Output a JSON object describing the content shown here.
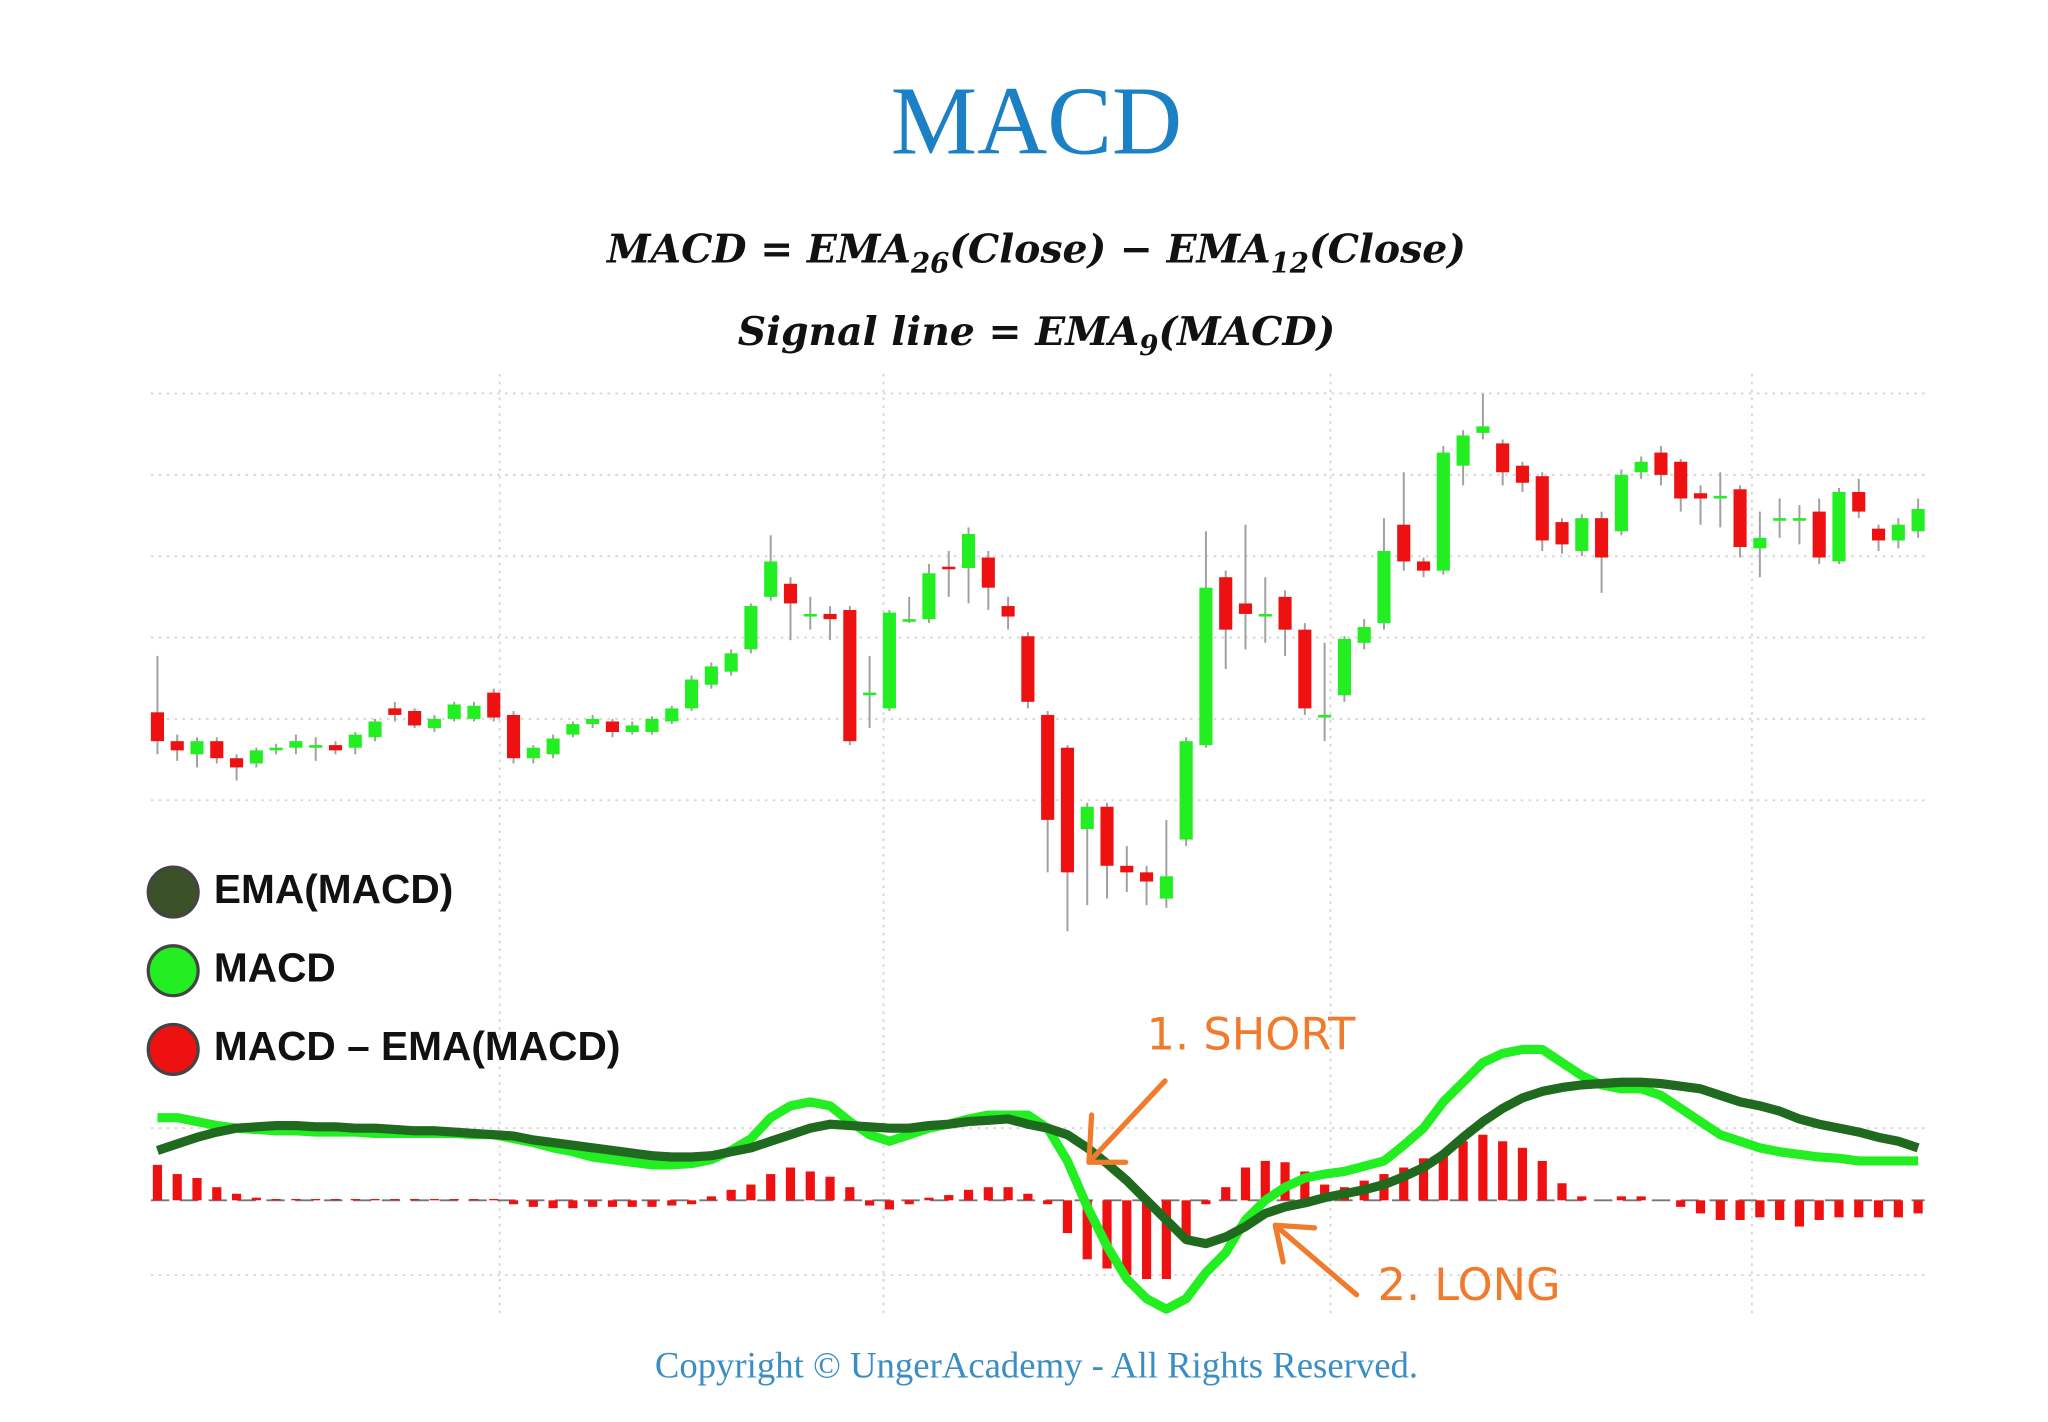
{
  "title": "MACD",
  "formulas": [
    [
      "MACD = EMA",
      "26",
      "(Close) − EMA",
      "12",
      "(Close)"
    ],
    [
      "Signal line = EMA",
      "9",
      "(MACD)"
    ]
  ],
  "copyright": "Copyright © UngerAcademy - All Rights Reserved.",
  "chart_data": [
    {
      "type": "candlestick",
      "up_color": "#22ee22",
      "down_color": "#ee1111",
      "wick_color": "#a0a0a0",
      "ylim": [
        0,
        420
      ],
      "yticks": [
        110,
        172,
        234,
        296,
        358,
        420
      ],
      "xlim": [
        0,
        89
      ],
      "xticks": [
        17.3,
        36.7,
        59.3,
        80.6
      ],
      "grid": true,
      "open": [
        177,
        155,
        145,
        155,
        142,
        138,
        148,
        150,
        150,
        152,
        150,
        158,
        180,
        178,
        165,
        172,
        172,
        192,
        175,
        142,
        145,
        160,
        168,
        170,
        162,
        162,
        170,
        180,
        198,
        208,
        225,
        265,
        275,
        250,
        252,
        255,
        190,
        180,
        247,
        248,
        288,
        287,
        295,
        258,
        235,
        175,
        150,
        88,
        105,
        60,
        55,
        35,
        80,
        152,
        280,
        260,
        252,
        265,
        240,
        175,
        190,
        230,
        245,
        320,
        292,
        285,
        365,
        390,
        382,
        365,
        357,
        322,
        300,
        325,
        315,
        360,
        375,
        368,
        344,
        340,
        347,
        302,
        325,
        325,
        330,
        292,
        345,
        317,
        308,
        315
      ],
      "high": [
        220,
        160,
        158,
        158,
        145,
        150,
        153,
        160,
        158,
        155,
        162,
        172,
        185,
        180,
        175,
        185,
        185,
        195,
        178,
        152,
        160,
        170,
        175,
        172,
        170,
        174,
        182,
        205,
        215,
        225,
        260,
        312,
        280,
        265,
        258,
        258,
        220,
        255,
        265,
        290,
        300,
        318,
        300,
        265,
        238,
        178,
        152,
        108,
        108,
        75,
        60,
        95,
        158,
        315,
        285,
        320,
        280,
        270,
        245,
        230,
        235,
        248,
        325,
        360,
        295,
        380,
        392,
        420,
        385,
        368,
        360,
        325,
        328,
        330,
        362,
        372,
        380,
        370,
        350,
        360,
        350,
        330,
        340,
        335,
        340,
        348,
        355,
        320,
        325,
        340
      ],
      "low": [
        145,
        140,
        135,
        138,
        125,
        135,
        145,
        145,
        140,
        145,
        145,
        155,
        170,
        165,
        162,
        170,
        170,
        170,
        138,
        138,
        142,
        158,
        165,
        158,
        160,
        160,
        168,
        178,
        195,
        205,
        222,
        262,
        232,
        240,
        232,
        152,
        165,
        178,
        245,
        245,
        265,
        260,
        255,
        240,
        180,
        55,
        10,
        30,
        35,
        40,
        30,
        28,
        75,
        150,
        210,
        225,
        230,
        220,
        175,
        155,
        185,
        225,
        240,
        285,
        280,
        282,
        350,
        385,
        350,
        345,
        300,
        298,
        296,
        268,
        312,
        355,
        350,
        330,
        320,
        318,
        295,
        280,
        310,
        305,
        290,
        290,
        325,
        300,
        302,
        310
      ],
      "close": [
        155,
        148,
        155,
        142,
        135,
        148,
        150,
        155,
        152,
        148,
        160,
        170,
        175,
        167,
        172,
        183,
        182,
        173,
        142,
        150,
        157,
        168,
        172,
        162,
        167,
        172,
        180,
        202,
        212,
        222,
        258,
        292,
        260,
        252,
        248,
        155,
        192,
        253,
        248,
        283,
        287,
        313,
        272,
        250,
        185,
        95,
        55,
        105,
        60,
        55,
        48,
        52,
        155,
        272,
        240,
        252,
        252,
        240,
        180,
        175,
        233,
        242,
        300,
        292,
        285,
        375,
        388,
        395,
        360,
        352,
        308,
        305,
        325,
        295,
        358,
        368,
        358,
        340,
        340,
        342,
        303,
        310,
        325,
        325,
        295,
        345,
        330,
        308,
        320,
        332
      ]
    },
    {
      "type": "macd",
      "ylim": [
        -85,
        115
      ],
      "yticks": [
        -57,
        0,
        55
      ],
      "grid": true,
      "legend": "left",
      "series": [
        {
          "name": "EMA(MACD)",
          "color": "#1f6a1f",
          "legend_color": "#3b5229",
          "values": [
            38,
            43,
            48,
            52,
            55,
            56,
            57,
            57,
            56,
            56,
            55,
            55,
            54,
            53,
            53,
            52,
            51,
            50,
            49,
            46,
            44,
            42,
            40,
            38,
            36,
            34,
            33,
            33,
            34,
            37,
            40,
            45,
            50,
            55,
            58,
            57,
            56,
            55,
            55,
            57,
            58,
            60,
            61,
            62,
            58,
            55,
            50,
            40,
            28,
            15,
            0,
            -15,
            -30,
            -33,
            -28,
            -20,
            -10,
            -5,
            -2,
            2,
            5,
            8,
            12,
            18,
            25,
            35,
            48,
            60,
            70,
            78,
            83,
            86,
            88,
            89,
            90,
            90,
            89,
            87,
            85,
            80,
            75,
            72,
            68,
            62,
            58,
            55,
            52,
            48,
            45,
            40
          ]
        },
        {
          "name": "MACD",
          "color": "#22ee22",
          "values": [
            63,
            63,
            60,
            57,
            55,
            54,
            53,
            53,
            52,
            52,
            52,
            51,
            51,
            51,
            51,
            51,
            50,
            50,
            47,
            44,
            40,
            37,
            33,
            31,
            29,
            27,
            27,
            28,
            31,
            38,
            47,
            63,
            72,
            75,
            72,
            60,
            50,
            45,
            50,
            55,
            58,
            62,
            65,
            65,
            65,
            55,
            30,
            -5,
            -35,
            -60,
            -75,
            -83,
            -75,
            -55,
            -40,
            -15,
            0,
            10,
            17,
            20,
            22,
            26,
            30,
            42,
            55,
            75,
            90,
            105,
            112,
            115,
            115,
            105,
            95,
            88,
            85,
            85,
            80,
            70,
            60,
            50,
            45,
            40,
            37,
            35,
            33,
            32,
            30,
            30,
            30,
            30
          ]
        },
        {
          "name": "MACD – EMA(MACD)",
          "color": "#ee1111",
          "values": [
            27,
            20,
            17,
            10,
            5,
            2,
            1,
            1,
            1,
            1,
            1,
            1,
            1,
            1,
            1,
            1,
            1,
            1,
            -3,
            -5,
            -6,
            -6,
            -5,
            -5,
            -5,
            -5,
            -4,
            -3,
            3,
            8,
            12,
            20,
            25,
            22,
            18,
            10,
            -4,
            -7,
            -3,
            2,
            4,
            8,
            10,
            10,
            5,
            -3,
            -25,
            -45,
            -52,
            -57,
            -60,
            -60,
            -30,
            -3,
            10,
            25,
            30,
            29,
            22,
            12,
            10,
            15,
            20,
            25,
            32,
            37,
            45,
            50,
            45,
            40,
            30,
            13,
            3,
            0,
            3,
            3,
            0,
            -5,
            -10,
            -15,
            -15,
            -13,
            -15,
            -20,
            -15,
            -13,
            -13,
            -13,
            -13,
            -10
          ]
        }
      ],
      "annotations": [
        {
          "text": "1. SHORT",
          "color": "#f07b2c"
        },
        {
          "text": "2. LONG",
          "color": "#f07b2c"
        }
      ]
    }
  ]
}
